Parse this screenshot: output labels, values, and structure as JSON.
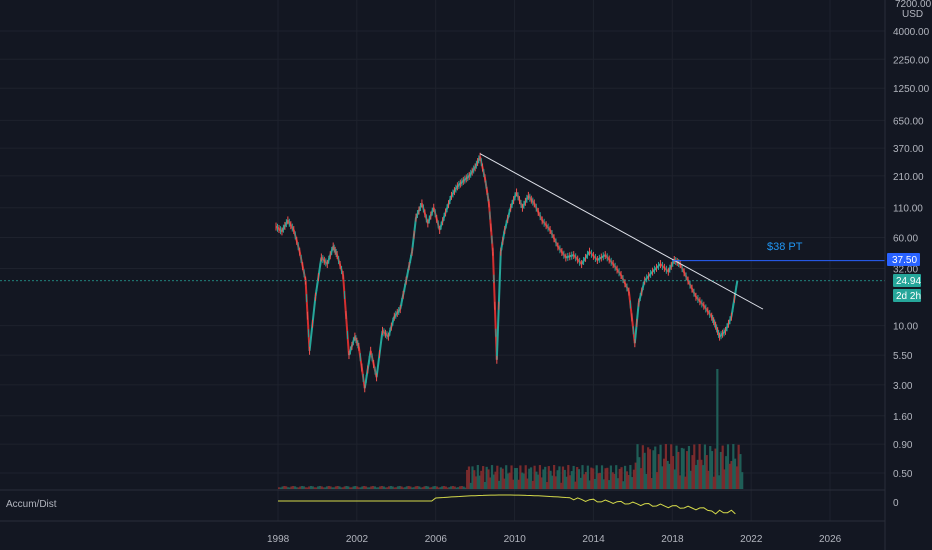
{
  "price_axis": {
    "unit_top": "7200.00",
    "unit_label": "USD",
    "ticks": [
      {
        "label": "4000.00",
        "value": 4000
      },
      {
        "label": "2250.00",
        "value": 2250
      },
      {
        "label": "1250.00",
        "value": 1250
      },
      {
        "label": "650.00",
        "value": 650
      },
      {
        "label": "370.00",
        "value": 370
      },
      {
        "label": "210.00",
        "value": 210
      },
      {
        "label": "110.00",
        "value": 110
      },
      {
        "label": "60.00",
        "value": 60
      },
      {
        "label": "32.00",
        "value": 32
      },
      {
        "label": "10.00",
        "value": 10
      },
      {
        "label": "5.50",
        "value": 5.5
      },
      {
        "label": "3.00",
        "value": 3
      },
      {
        "label": "1.60",
        "value": 1.6
      },
      {
        "label": "0.90",
        "value": 0.9
      },
      {
        "label": "0.50",
        "value": 0.5
      }
    ]
  },
  "time_axis": {
    "ticks": [
      {
        "label": "1998",
        "year": 1998
      },
      {
        "label": "2002",
        "year": 2002
      },
      {
        "label": "2006",
        "year": 2006
      },
      {
        "label": "2010",
        "year": 2010
      },
      {
        "label": "2014",
        "year": 2014
      },
      {
        "label": "2018",
        "year": 2018
      },
      {
        "label": "2022",
        "year": 2022
      },
      {
        "label": "2026",
        "year": 2026
      }
    ]
  },
  "badges": {
    "target": {
      "label": "37.50",
      "value": 37.5,
      "color": "#2962ff"
    },
    "current": {
      "label": "24.94",
      "value": 24.94,
      "color": "#26a69a"
    },
    "countdown": {
      "label": "2d 2h",
      "color": "#26a69a"
    }
  },
  "annotation": {
    "text": "$38 PT",
    "color": "#2196f3"
  },
  "indicator": {
    "name": "Accum/Dist",
    "zero_label": "0",
    "color": "#d4d94a"
  },
  "colors": {
    "up": "#26a69a",
    "down": "#ef5350",
    "trend_red": "#d32f2f",
    "trend_blue": "#2a3fd6",
    "trendline": "#e0e3eb",
    "grid": "#1e222d"
  },
  "chart_data": {
    "type": "line",
    "scale": "log",
    "series": [
      {
        "values_x": [
          1997.9,
          1998.2,
          1998.5,
          1998.8,
          1999.1,
          1999.4,
          1999.6,
          1999.9,
          2000.2,
          2000.5,
          2000.8,
          2001.0,
          2001.3,
          2001.6,
          2001.9,
          2002.1,
          2002.4,
          2002.7,
          2003.0,
          2003.3,
          2003.6,
          2003.9,
          2004.2,
          2004.5,
          2004.8,
          2005.0,
          2005.3,
          2005.6,
          2005.9,
          2006.2,
          2006.5,
          2006.8,
          2007.1,
          2007.4,
          2007.7,
          2008.0,
          2008.25,
          2008.5,
          2008.7,
          2008.9,
          2009.1,
          2009.3,
          2009.5,
          2009.8,
          2010.1,
          2010.4,
          2010.7,
          2011.0,
          2011.4,
          2011.8,
          2012.2,
          2012.6,
          2013.0,
          2013.4,
          2013.8,
          2014.2,
          2014.6,
          2015.0,
          2015.4,
          2015.8,
          2016.1,
          2016.3,
          2016.6,
          2017.0,
          2017.4,
          2017.8,
          2018.1,
          2018.4,
          2018.8,
          2019.2,
          2019.6,
          2020.0,
          2020.2,
          2020.4,
          2020.7,
          2021.0,
          2021.3
        ],
        "values": [
          75,
          68,
          85,
          70,
          45,
          25,
          6,
          18,
          40,
          35,
          50,
          42,
          28,
          5.5,
          8,
          6.5,
          2.8,
          6,
          3.5,
          9,
          8,
          12,
          14,
          25,
          45,
          90,
          120,
          80,
          110,
          70,
          100,
          140,
          170,
          190,
          210,
          250,
          310,
          200,
          120,
          45,
          5,
          45,
          70,
          110,
          150,
          110,
          140,
          120,
          85,
          70,
          50,
          40,
          42,
          35,
          45,
          38,
          42,
          35,
          28,
          20,
          7,
          16,
          25,
          30,
          35,
          30,
          38,
          35,
          25,
          18,
          15,
          12,
          10,
          8,
          9,
          12,
          24.94
        ]
      }
    ],
    "trendline": {
      "from": {
        "year": 2008.25,
        "price": 330
      },
      "to": {
        "year": 2022.6,
        "price": 14
      }
    },
    "target_line": {
      "price": 37.5,
      "from_year": 2018.0
    },
    "volume_note": "volume bars shown at bottom; spike near 2020",
    "xlim": [
      1996.4,
      2029.5
    ],
    "ylim": [
      0.38,
      7200
    ]
  }
}
